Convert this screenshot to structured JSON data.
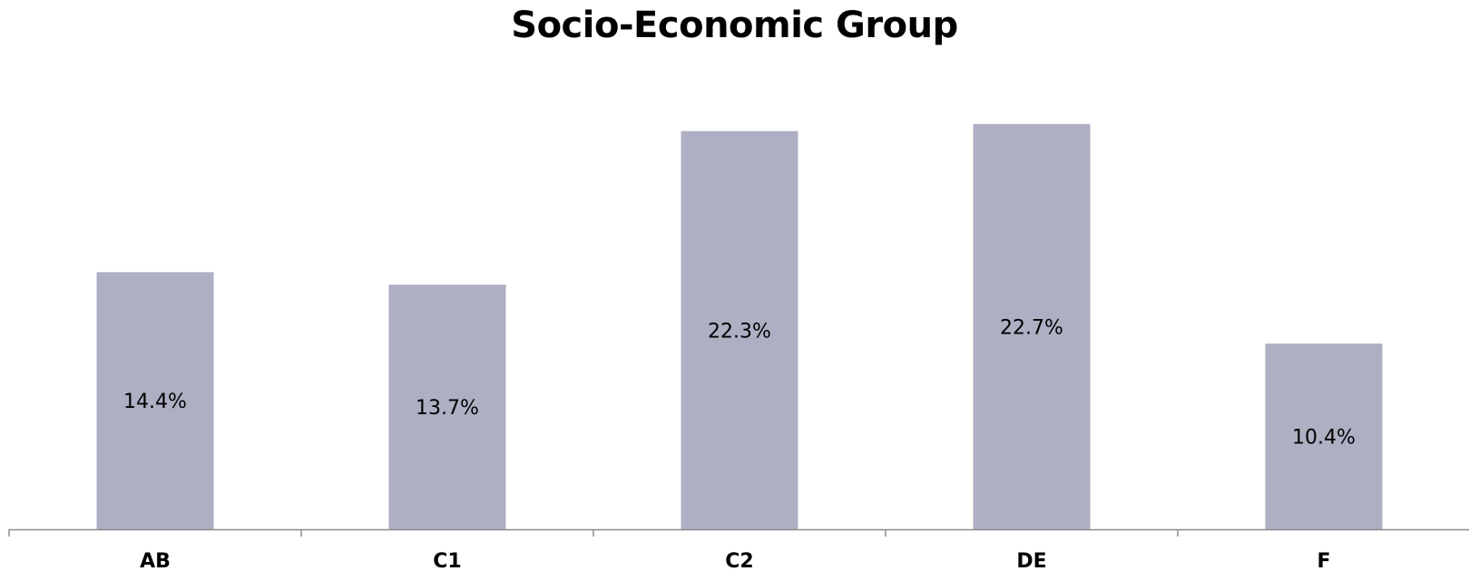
{
  "chart_data": {
    "type": "bar",
    "title": "Socio-Economic Group",
    "xlabel": "",
    "ylabel": "",
    "categories": [
      "AB",
      "C1",
      "C2",
      "DE",
      "F"
    ],
    "values": [
      14.4,
      13.7,
      22.3,
      22.7,
      10.4
    ],
    "data_labels": [
      "14.4%",
      "13.7%",
      "22.3%",
      "22.7%",
      "10.4%"
    ],
    "ylim": [
      0,
      23
    ],
    "grid": false,
    "legend": "none",
    "colors": {
      "bar": "#aeafc3",
      "axis": "#8c8c8c",
      "text": "#000000"
    }
  }
}
